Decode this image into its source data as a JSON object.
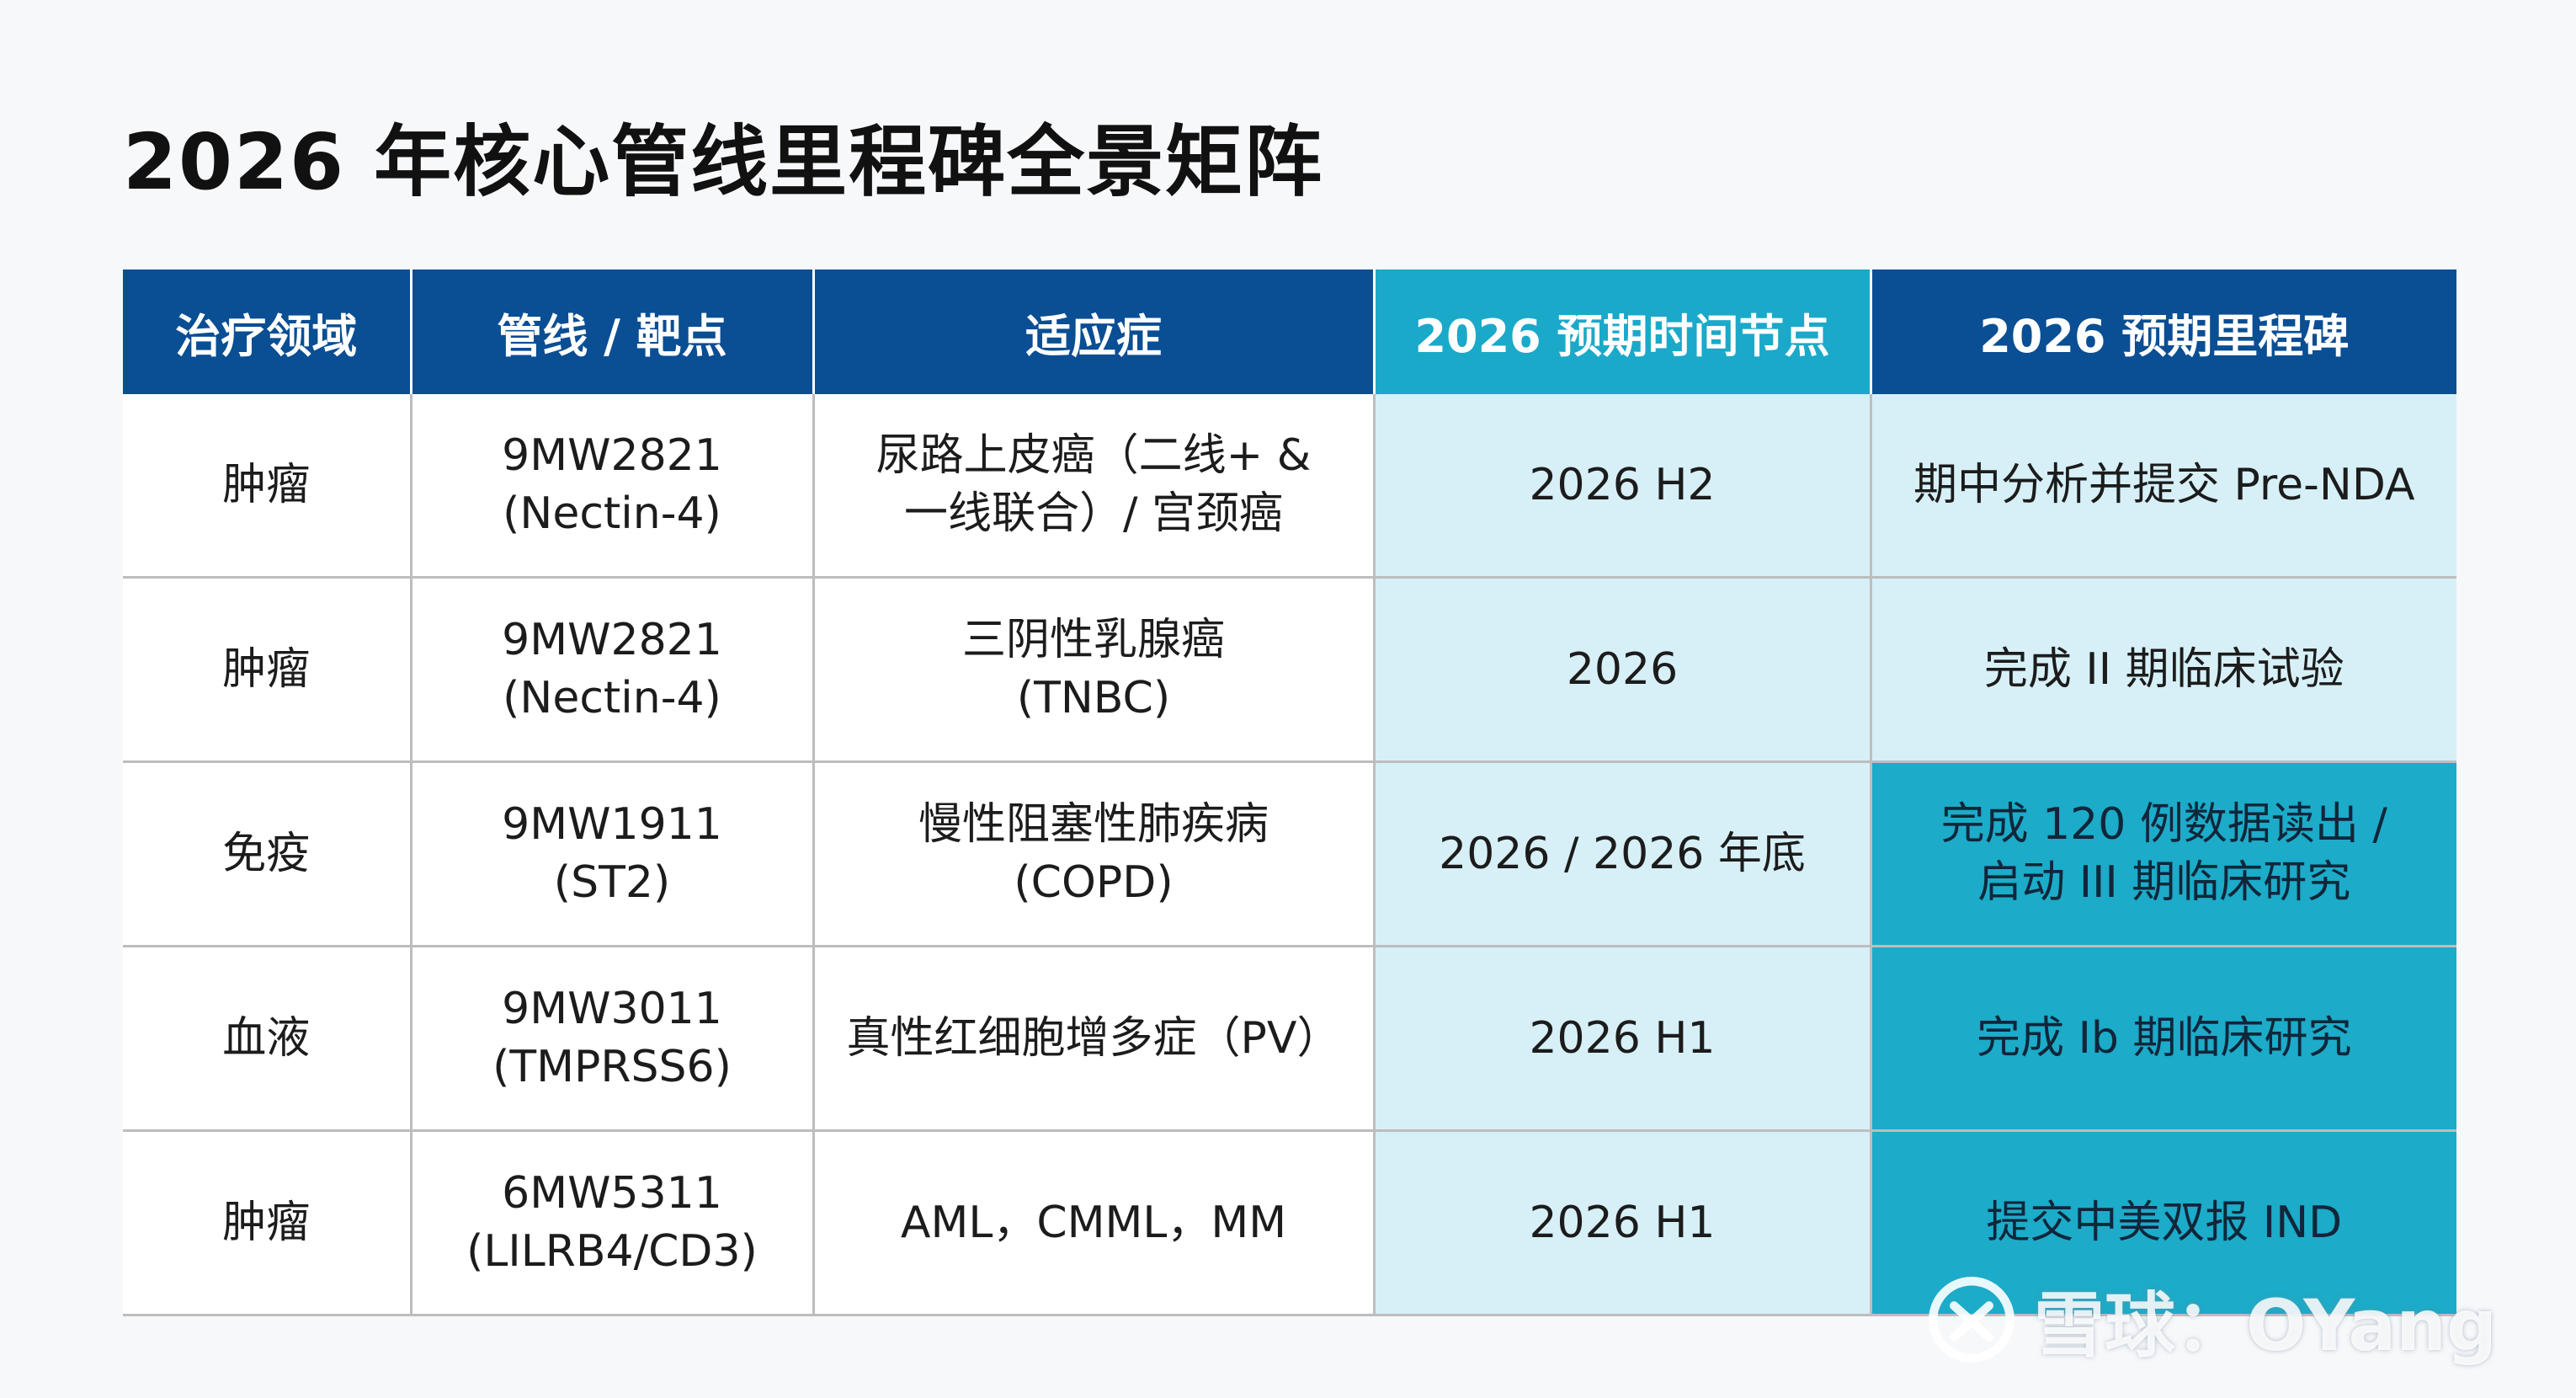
{
  "title": "2026 年核心管线里程碑全景矩阵",
  "headers": [
    "治疗领域",
    "管线 / 靶点",
    "适应症",
    "2026 预期时间节点",
    "2026 预期里程碑"
  ],
  "rows": [
    {
      "area": "肿瘤",
      "pipeline": [
        "9MW2821",
        "(Nectin-4)"
      ],
      "indication": [
        "尿路上皮癌（二线+ &",
        "一线联合）/ 宫颈癌"
      ],
      "timing": [
        "2026 H2"
      ],
      "milestone": [
        "期中分析并提交 Pre-NDA"
      ]
    },
    {
      "area": "肿瘤",
      "pipeline": [
        "9MW2821",
        "(Nectin-4)"
      ],
      "indication": [
        "三阴性乳腺癌",
        "(TNBC)"
      ],
      "timing": [
        "2026"
      ],
      "milestone": [
        "完成 II 期临床试验"
      ]
    },
    {
      "area": "免疫",
      "pipeline": [
        "9MW1911",
        "(ST2)"
      ],
      "indication": [
        "慢性阻塞性肺疾病",
        "(COPD)"
      ],
      "timing": [
        "2026 / 2026 年底"
      ],
      "milestone": [
        "完成 120 例数据读出 /",
        "启动 III 期临床研究"
      ]
    },
    {
      "area": "血液",
      "pipeline": [
        "9MW3011",
        "(TMPRSS6)"
      ],
      "indication": [
        "真性红细胞增多症（PV）"
      ],
      "timing": [
        "2026 H1"
      ],
      "milestone": [
        "完成 Ib 期临床研究"
      ]
    },
    {
      "area": "肿瘤",
      "pipeline": [
        "6MW5311",
        "(LILRB4/CD3)"
      ],
      "indication": [
        "AML，CMML，MM"
      ],
      "timing": [
        "2026 H1"
      ],
      "milestone": [
        "提交中美双报 IND"
      ]
    }
  ],
  "watermark": "雪球：OYang",
  "colors": {
    "header": "#0a4e94",
    "header_time": "#1aa9c9",
    "time_cell": "#d7f0f7",
    "milestone_highlight": "#1cabc8",
    "border": "#bdbdbd"
  },
  "icons": {
    "watermark_logo": "xueqiu-logo-icon"
  }
}
